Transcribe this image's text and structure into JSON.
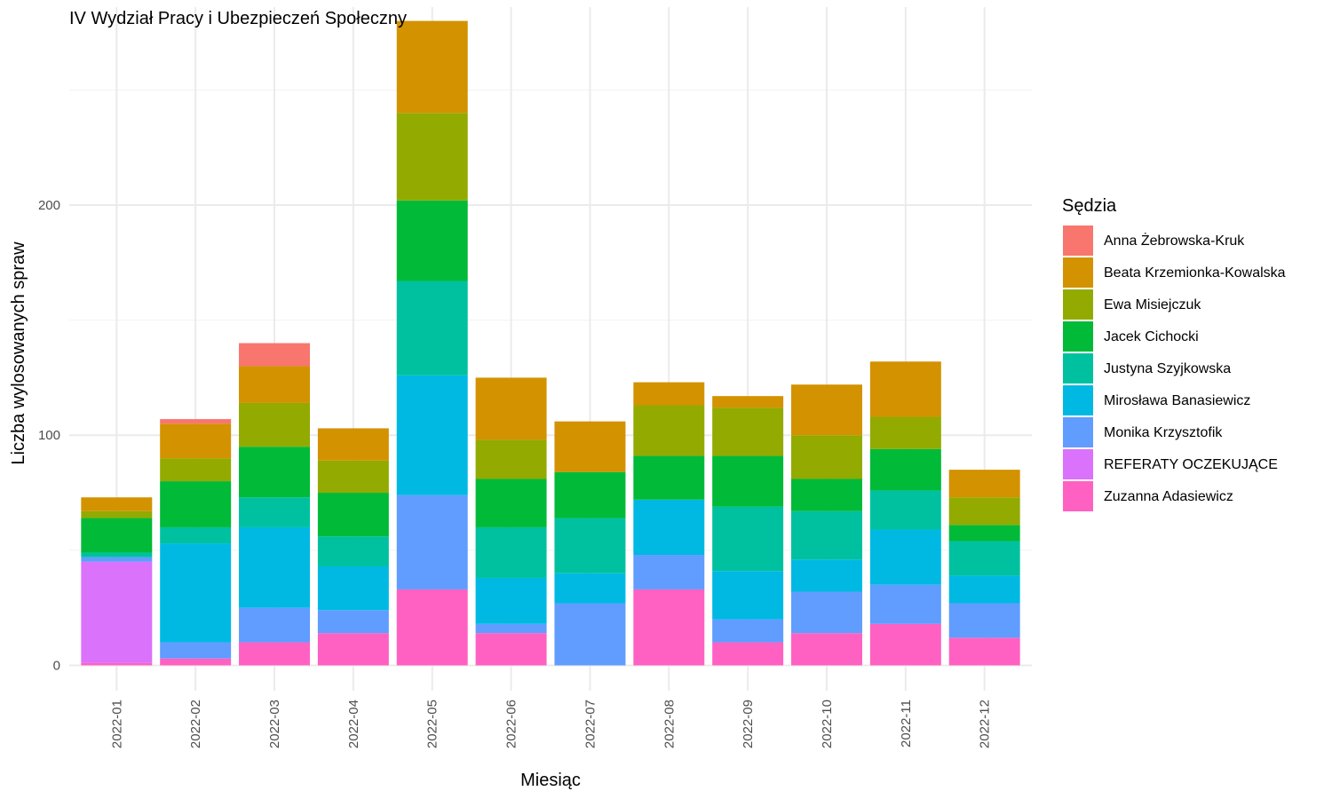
{
  "chart_data": {
    "type": "bar",
    "stacked": true,
    "title": "IV Wydział Pracy i Ubezpieczeń Społeczny",
    "xlabel": "Miesiąc",
    "ylabel": "Liczba wylosowanych spraw",
    "ylim": [
      -11,
      286
    ],
    "y_ticks": [
      0,
      100,
      200
    ],
    "grid": true,
    "legend": {
      "title": "Sędzia",
      "position": "right"
    },
    "categories": [
      "2022-01",
      "2022-02",
      "2022-03",
      "2022-04",
      "2022-05",
      "2022-06",
      "2022-07",
      "2022-08",
      "2022-09",
      "2022-10",
      "2022-11",
      "2022-12"
    ],
    "series": [
      {
        "name": "Anna Żebrowska-Kruk",
        "color": "#F8766D",
        "values": [
          0,
          2,
          10,
          0,
          0,
          0,
          0,
          0,
          0,
          0,
          0,
          0
        ]
      },
      {
        "name": "Beata Krzemionka-Kowalska",
        "color": "#D39200",
        "values": [
          6,
          15,
          16,
          14,
          40,
          27,
          22,
          10,
          5,
          22,
          24,
          12
        ]
      },
      {
        "name": "Ewa Misiejczuk",
        "color": "#93AA00",
        "values": [
          3,
          10,
          19,
          14,
          38,
          17,
          0,
          22,
          21,
          19,
          14,
          12
        ]
      },
      {
        "name": "Jacek Cichocki",
        "color": "#00BA38",
        "values": [
          15,
          20,
          22,
          19,
          35,
          21,
          20,
          19,
          22,
          14,
          18,
          7
        ]
      },
      {
        "name": "Justyna Szyjkowska",
        "color": "#00C19F",
        "values": [
          2,
          7,
          13,
          13,
          41,
          22,
          24,
          0,
          28,
          21,
          17,
          15
        ]
      },
      {
        "name": "Mirosława Banasiewicz",
        "color": "#00B9E3",
        "values": [
          0,
          43,
          35,
          19,
          52,
          20,
          13,
          24,
          21,
          14,
          24,
          12
        ]
      },
      {
        "name": "Monika Krzysztofik",
        "color": "#619CFF",
        "values": [
          2,
          7,
          15,
          10,
          41,
          4,
          27,
          15,
          10,
          18,
          17,
          15
        ]
      },
      {
        "name": "REFERATY OCZEKUJĄCE",
        "color": "#DB72FB",
        "values": [
          44,
          0,
          0,
          0,
          0,
          0,
          0,
          0,
          0,
          0,
          0,
          0
        ]
      },
      {
        "name": "Zuzanna Adasiewicz",
        "color": "#FF61C3",
        "values": [
          1,
          3,
          10,
          14,
          33,
          14,
          0,
          33,
          10,
          14,
          18,
          12
        ]
      }
    ]
  }
}
